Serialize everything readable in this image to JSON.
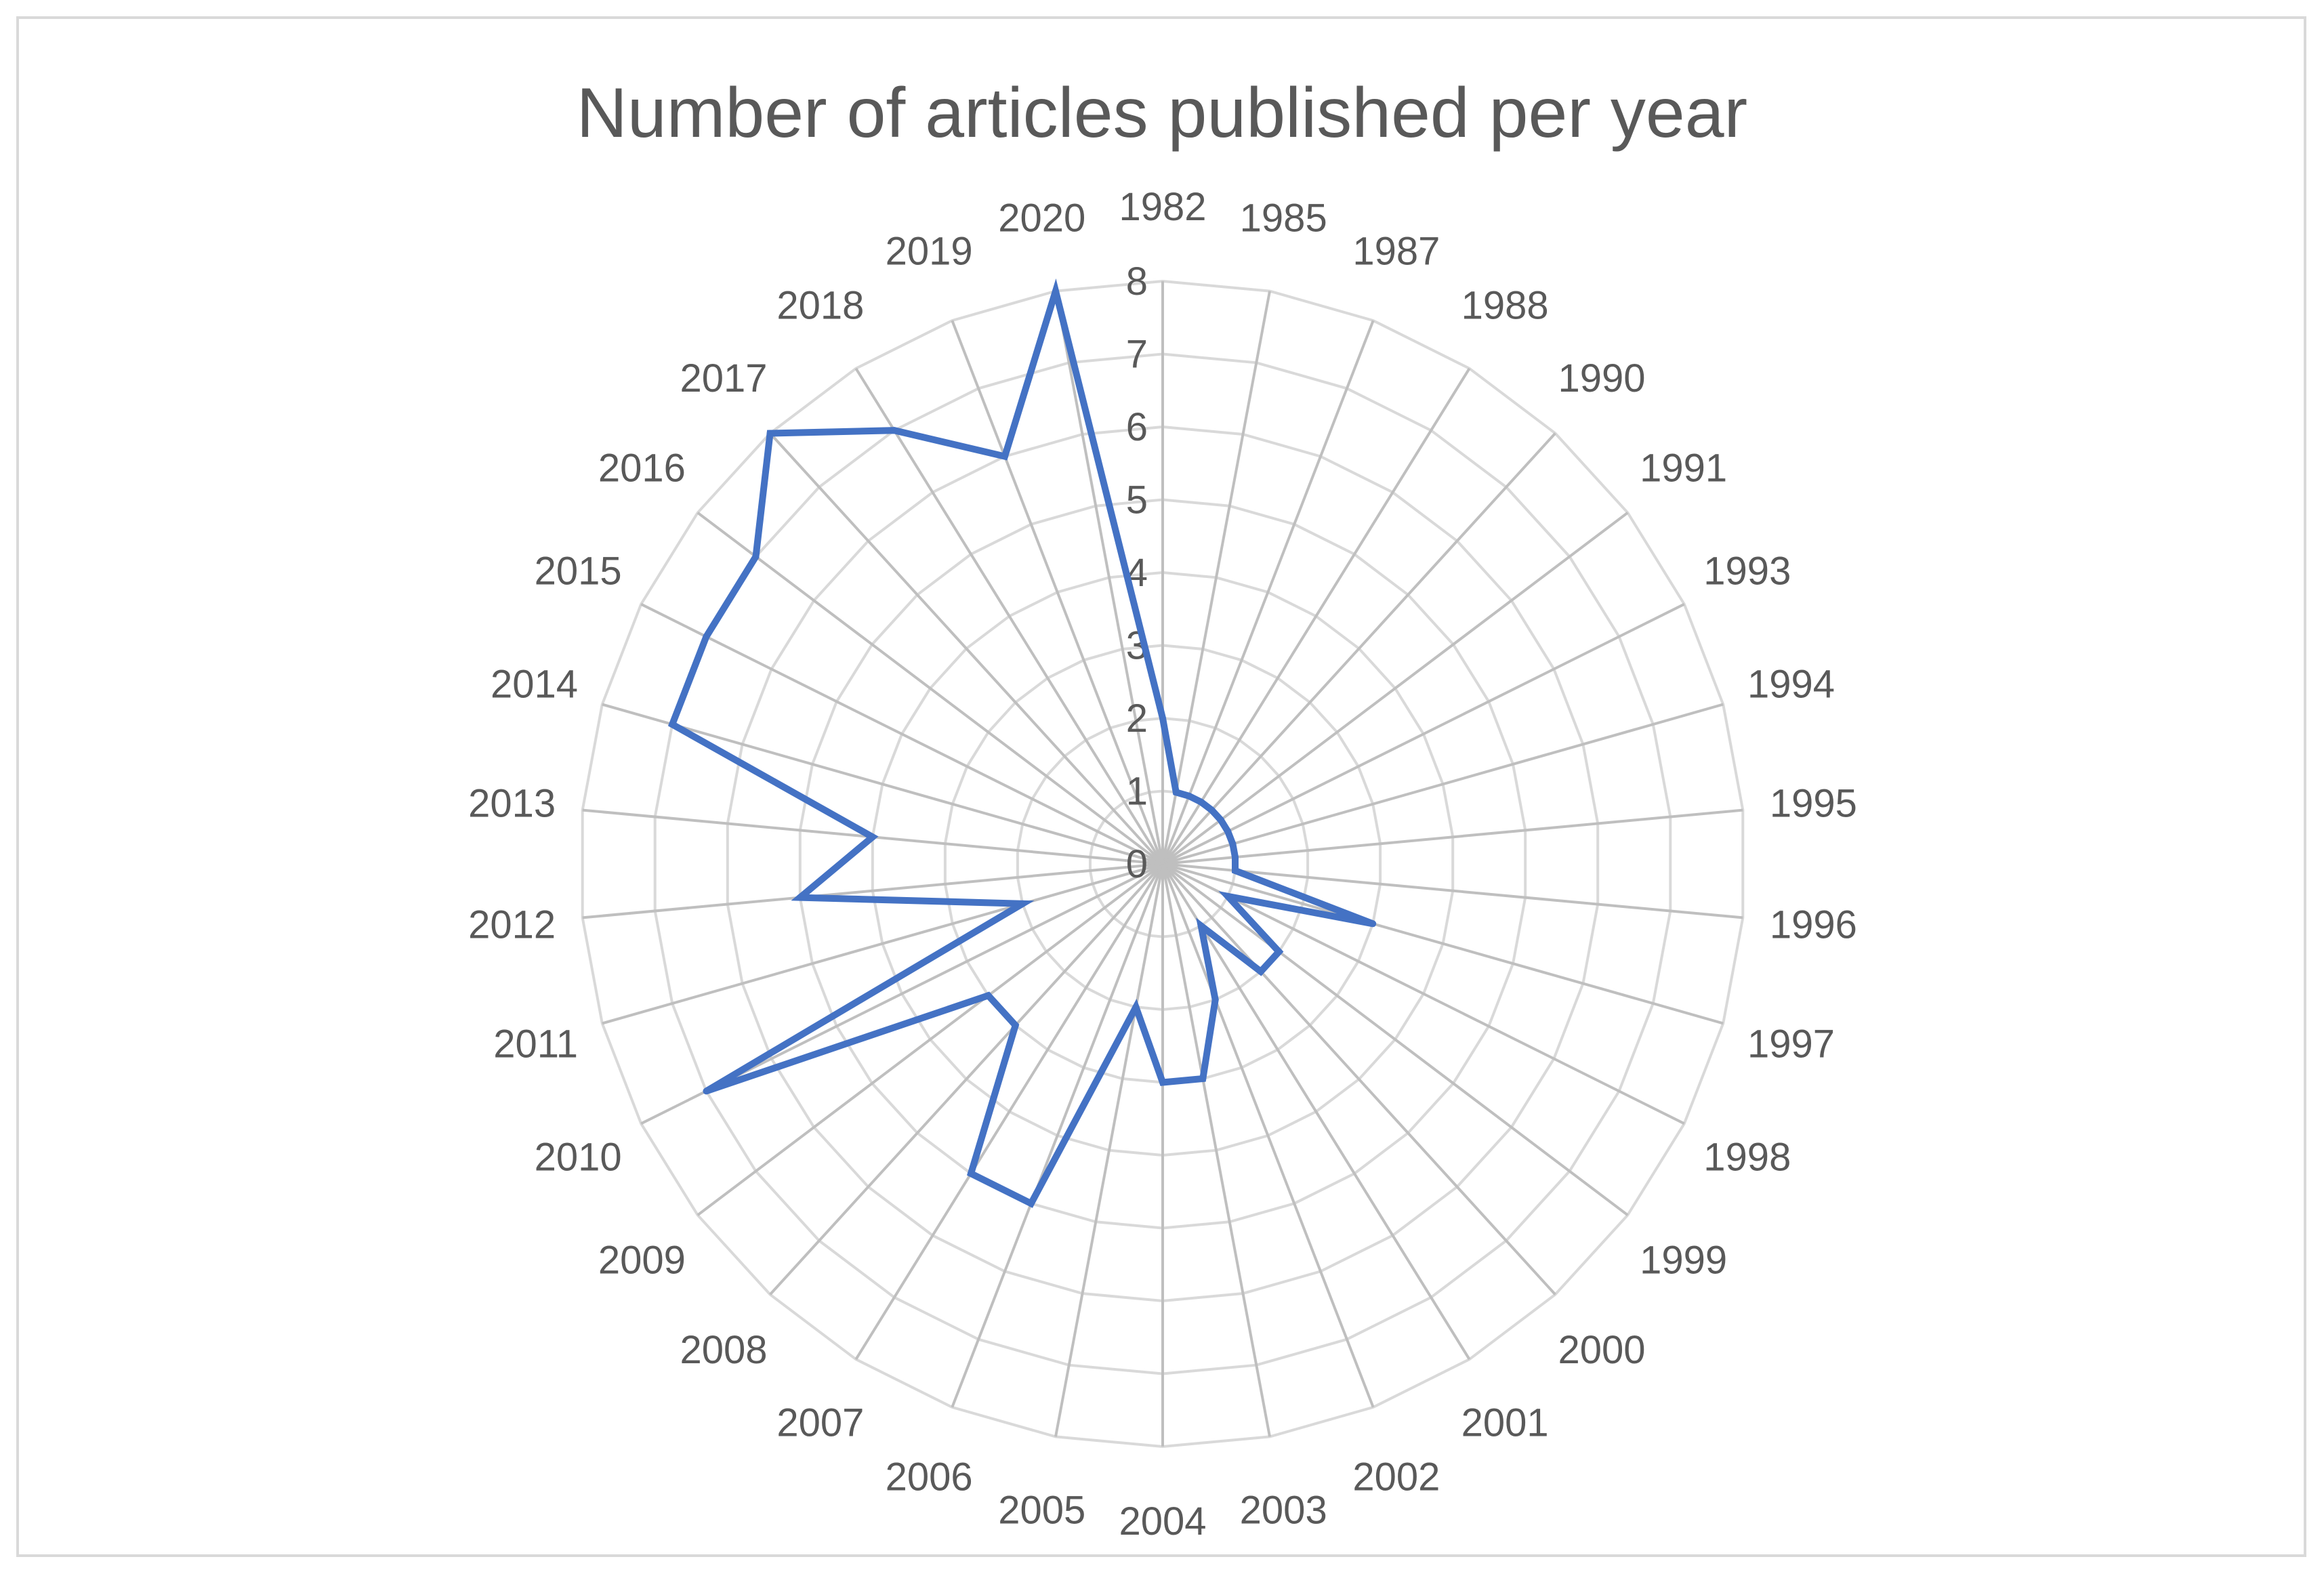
{
  "chart_data": {
    "type": "radar",
    "title": "Number of articles published per year",
    "categories": [
      "1982",
      "1985",
      "1987",
      "1988",
      "1990",
      "1991",
      "1993",
      "1994",
      "1995",
      "1996",
      "1997",
      "1998",
      "1999",
      "2000",
      "2001",
      "2002",
      "2003",
      "2004",
      "2005",
      "2006",
      "2007",
      "2008",
      "2009",
      "2010",
      "2011",
      "2012",
      "2013",
      "2014",
      "2015",
      "2016",
      "2017",
      "2018",
      "2019",
      "2020"
    ],
    "series": [
      {
        "values": [
          2,
          1,
          1,
          1,
          1,
          1,
          1,
          1,
          1,
          1,
          3,
          1,
          2,
          2,
          1,
          2,
          3,
          3,
          2,
          5,
          5,
          3,
          3,
          7,
          2,
          5,
          4,
          7,
          7,
          7,
          8,
          7,
          6,
          8
        ]
      }
    ],
    "rlim": [
      0,
      8
    ],
    "ticks": [
      "0",
      "1",
      "2",
      "3",
      "4",
      "5",
      "6",
      "7",
      "8"
    ],
    "grid": true,
    "legend": "none",
    "colors": {
      "series": "#4472c4",
      "gridline": "#d9d9d9",
      "spoke": "#bfbfbf",
      "text": "#595959"
    }
  }
}
